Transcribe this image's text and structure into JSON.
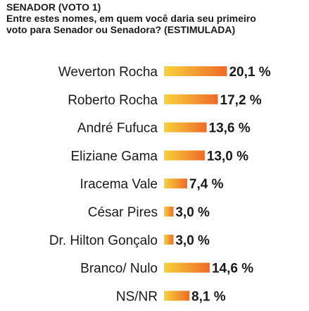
{
  "header": {
    "title": "SENADOR (VOTO 1)",
    "subtitle_line1": "Entre estes nomes, em quem você daria seu primeiro",
    "subtitle_line2": "voto para Senador ou Senadora? (ESTIMULADA)"
  },
  "colors": {
    "bar_start": "#f7d23a",
    "bar_end": "#ef6a2a",
    "text": "#1a1a1a",
    "background": "#ffffff"
  },
  "chart_data": {
    "type": "bar",
    "orientation": "horizontal",
    "categories": [
      "Weverton Rocha",
      "Roberto Rocha",
      "André Fufuca",
      "Eliziane Gama",
      "Iracema Vale",
      "César Pires",
      "Dr. Hilton Gonçalo",
      "Branco/ Nulo",
      "NS/NR"
    ],
    "values": [
      20.1,
      17.2,
      13.6,
      13.0,
      7.4,
      3.0,
      3.0,
      14.6,
      8.1
    ],
    "value_labels": [
      "20,1 %",
      "17,2 %",
      "13,6 %",
      "13,0 %",
      "7,4 %",
      "3,0 %",
      "3,0 %",
      "14,6 %",
      "8,1 %"
    ],
    "title": "SENADOR (VOTO 1)",
    "xlabel": "",
    "ylabel": "",
    "grid": false
  }
}
